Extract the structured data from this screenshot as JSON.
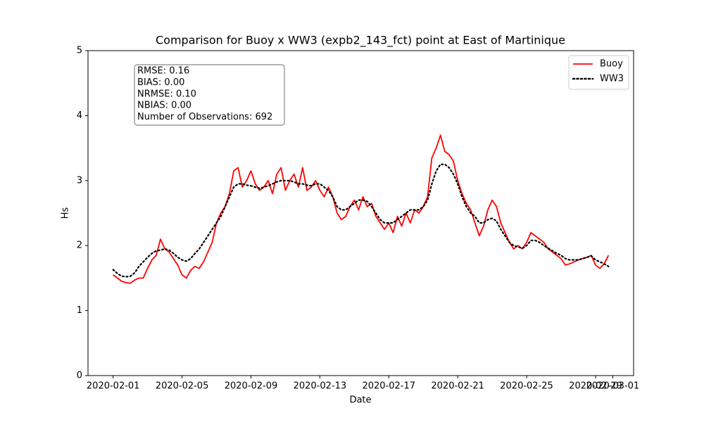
{
  "chart_data": {
    "type": "line",
    "title": "Comparison for Buoy x WW3 (expb2_143_fct) point at East of Martinique",
    "xlabel": "Date",
    "ylabel": "Hs",
    "annotation": [
      "RMSE: 0.16",
      "BIAS: 0.00",
      "NRMSE: 0.10",
      "NBIAS: 0.00",
      "Number of Observations: 692"
    ],
    "legend": "upper right",
    "xlim": [
      "2020-01-30 13:00",
      "2020-03-02 05:00"
    ],
    "xticks": [
      "2020-02-01",
      "2020-02-05",
      "2020-02-09",
      "2020-02-13",
      "2020-02-17",
      "2020-02-21",
      "2020-02-25",
      "2020-02-29",
      "2020-03-01"
    ],
    "ylim": [
      0,
      5
    ],
    "yticks": [
      0,
      1,
      2,
      3,
      4,
      5
    ],
    "x": [
      "2020-02-01 00:00",
      "2020-02-01 06:00",
      "2020-02-01 12:00",
      "2020-02-01 18:00",
      "2020-02-02 00:00",
      "2020-02-02 06:00",
      "2020-02-02 12:00",
      "2020-02-02 18:00",
      "2020-02-03 00:00",
      "2020-02-03 06:00",
      "2020-02-03 12:00",
      "2020-02-03 18:00",
      "2020-02-04 00:00",
      "2020-02-04 06:00",
      "2020-02-04 12:00",
      "2020-02-04 18:00",
      "2020-02-05 00:00",
      "2020-02-05 06:00",
      "2020-02-05 12:00",
      "2020-02-05 18:00",
      "2020-02-06 00:00",
      "2020-02-06 06:00",
      "2020-02-06 12:00",
      "2020-02-06 18:00",
      "2020-02-07 00:00",
      "2020-02-07 06:00",
      "2020-02-07 12:00",
      "2020-02-07 18:00",
      "2020-02-08 00:00",
      "2020-02-08 06:00",
      "2020-02-08 12:00",
      "2020-02-08 18:00",
      "2020-02-09 00:00",
      "2020-02-09 06:00",
      "2020-02-09 12:00",
      "2020-02-09 18:00",
      "2020-02-10 00:00",
      "2020-02-10 06:00",
      "2020-02-10 12:00",
      "2020-02-10 18:00",
      "2020-02-11 00:00",
      "2020-02-11 06:00",
      "2020-02-11 12:00",
      "2020-02-11 18:00",
      "2020-02-12 00:00",
      "2020-02-12 06:00",
      "2020-02-12 12:00",
      "2020-02-12 18:00",
      "2020-02-13 00:00",
      "2020-02-13 06:00",
      "2020-02-13 12:00",
      "2020-02-13 18:00",
      "2020-02-14 00:00",
      "2020-02-14 06:00",
      "2020-02-14 12:00",
      "2020-02-14 18:00",
      "2020-02-15 00:00",
      "2020-02-15 06:00",
      "2020-02-15 12:00",
      "2020-02-15 18:00",
      "2020-02-16 00:00",
      "2020-02-16 06:00",
      "2020-02-16 12:00",
      "2020-02-16 18:00",
      "2020-02-17 00:00",
      "2020-02-17 06:00",
      "2020-02-17 12:00",
      "2020-02-17 18:00",
      "2020-02-18 00:00",
      "2020-02-18 06:00",
      "2020-02-18 12:00",
      "2020-02-18 18:00",
      "2020-02-19 00:00",
      "2020-02-19 06:00",
      "2020-02-19 12:00",
      "2020-02-19 18:00",
      "2020-02-20 00:00",
      "2020-02-20 06:00",
      "2020-02-20 12:00",
      "2020-02-20 18:00",
      "2020-02-21 00:00",
      "2020-02-21 06:00",
      "2020-02-21 12:00",
      "2020-02-21 18:00",
      "2020-02-22 00:00",
      "2020-02-22 06:00",
      "2020-02-22 12:00",
      "2020-02-22 18:00",
      "2020-02-23 00:00",
      "2020-02-23 06:00",
      "2020-02-23 12:00",
      "2020-02-23 18:00",
      "2020-02-24 00:00",
      "2020-02-24 06:00",
      "2020-02-24 12:00",
      "2020-02-24 18:00",
      "2020-02-25 00:00",
      "2020-02-25 06:00",
      "2020-02-25 12:00",
      "2020-02-25 18:00",
      "2020-02-26 00:00",
      "2020-02-26 06:00",
      "2020-02-26 12:00",
      "2020-02-26 18:00",
      "2020-02-27 00:00",
      "2020-02-27 06:00",
      "2020-02-27 12:00",
      "2020-02-27 18:00",
      "2020-02-28 00:00",
      "2020-02-28 06:00",
      "2020-02-28 12:00",
      "2020-02-28 18:00",
      "2020-02-29 00:00",
      "2020-02-29 06:00",
      "2020-02-29 12:00",
      "2020-02-29 18:00"
    ],
    "series": [
      {
        "name": "Buoy",
        "color": "#ff0000",
        "style": "solid",
        "values": [
          1.55,
          1.5,
          1.45,
          1.43,
          1.42,
          1.47,
          1.5,
          1.5,
          1.65,
          1.78,
          1.85,
          2.1,
          1.95,
          1.9,
          1.8,
          1.7,
          1.55,
          1.5,
          1.62,
          1.68,
          1.65,
          1.75,
          1.9,
          2.05,
          2.35,
          2.5,
          2.6,
          2.8,
          3.15,
          3.2,
          2.9,
          3.0,
          3.15,
          2.95,
          2.85,
          2.9,
          3.0,
          2.8,
          3.1,
          3.2,
          2.85,
          3.0,
          3.1,
          2.9,
          3.2,
          2.85,
          2.9,
          3.0,
          2.85,
          2.75,
          2.9,
          2.75,
          2.5,
          2.4,
          2.45,
          2.6,
          2.7,
          2.55,
          2.75,
          2.6,
          2.65,
          2.45,
          2.35,
          2.25,
          2.35,
          2.2,
          2.45,
          2.3,
          2.5,
          2.35,
          2.55,
          2.5,
          2.6,
          2.75,
          3.35,
          3.5,
          3.7,
          3.45,
          3.4,
          3.3,
          3.0,
          2.8,
          2.65,
          2.55,
          2.35,
          2.15,
          2.3,
          2.55,
          2.7,
          2.6,
          2.35,
          2.2,
          2.05,
          1.95,
          2.0,
          1.95,
          2.05,
          2.2,
          2.15,
          2.1,
          2.05,
          1.95,
          1.9,
          1.85,
          1.8,
          1.7,
          1.72,
          1.75,
          1.78,
          1.8,
          1.82,
          1.85,
          1.7,
          1.65,
          1.72,
          1.85
        ]
      },
      {
        "name": "WW3",
        "color": "#000000",
        "style": "dotted",
        "values": [
          1.63,
          1.57,
          1.53,
          1.52,
          1.53,
          1.58,
          1.68,
          1.75,
          1.82,
          1.88,
          1.92,
          1.93,
          1.95,
          1.93,
          1.88,
          1.82,
          1.78,
          1.76,
          1.8,
          1.88,
          1.95,
          2.05,
          2.15,
          2.25,
          2.35,
          2.45,
          2.6,
          2.75,
          2.9,
          2.95,
          2.95,
          2.93,
          2.92,
          2.9,
          2.88,
          2.9,
          2.92,
          2.95,
          2.98,
          3.0,
          3.0,
          3.0,
          2.98,
          2.95,
          2.95,
          2.93,
          2.92,
          2.95,
          2.95,
          2.9,
          2.85,
          2.75,
          2.6,
          2.55,
          2.55,
          2.6,
          2.65,
          2.7,
          2.7,
          2.68,
          2.6,
          2.5,
          2.4,
          2.35,
          2.35,
          2.35,
          2.4,
          2.45,
          2.5,
          2.55,
          2.55,
          2.55,
          2.6,
          2.7,
          2.95,
          3.15,
          3.25,
          3.25,
          3.2,
          3.1,
          2.95,
          2.75,
          2.6,
          2.5,
          2.45,
          2.35,
          2.35,
          2.4,
          2.42,
          2.38,
          2.25,
          2.15,
          2.05,
          2.0,
          1.98,
          1.96,
          2.0,
          2.08,
          2.08,
          2.05,
          2.0,
          1.96,
          1.92,
          1.88,
          1.85,
          1.8,
          1.78,
          1.78,
          1.78,
          1.8,
          1.82,
          1.84,
          1.78,
          1.75,
          1.72,
          1.68
        ]
      }
    ]
  }
}
